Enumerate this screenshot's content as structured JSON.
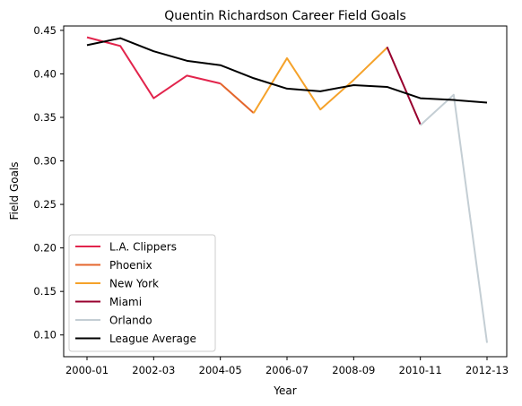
{
  "chart_data": {
    "type": "line",
    "title": "Quentin Richardson Career Field Goals",
    "xlabel": "Year",
    "ylabel": "Field Goals",
    "x_labels": [
      "2000-01",
      "2001-02",
      "2002-03",
      "2003-04",
      "2004-05",
      "2005-06",
      "2006-07",
      "2007-08",
      "2008-09",
      "2009-10",
      "2010-11",
      "2011-12",
      "2012-13"
    ],
    "x_tick_labels": [
      "2000-01",
      "2002-03",
      "2004-05",
      "2006-07",
      "2008-09",
      "2010-11",
      "2012-13"
    ],
    "ylim": [
      0.075,
      0.455
    ],
    "y_ticks": [
      0.1,
      0.15,
      0.2,
      0.25,
      0.3,
      0.35,
      0.4,
      0.45
    ],
    "y_tick_labels": [
      "0.10",
      "0.15",
      "0.20",
      "0.25",
      "0.30",
      "0.35",
      "0.40",
      "0.45"
    ],
    "grid": false,
    "legend_position": "lower-left",
    "series": [
      {
        "name": "L.A. Clippers",
        "color": "#e2244c",
        "points": [
          [
            "2000-01",
            0.442
          ],
          [
            "2001-02",
            0.432
          ],
          [
            "2002-03",
            0.372
          ],
          [
            "2003-04",
            0.398
          ],
          [
            "2004-05",
            0.389
          ]
        ]
      },
      {
        "name": "Phoenix",
        "color": "#e4662c",
        "points": [
          [
            "2004-05",
            0.389
          ],
          [
            "2005-06",
            0.355
          ]
        ]
      },
      {
        "name": "New York",
        "color": "#f5a22a",
        "points": [
          [
            "2005-06",
            0.355
          ],
          [
            "2006-07",
            0.418
          ],
          [
            "2007-08",
            0.359
          ],
          [
            "2008-09",
            0.393
          ],
          [
            "2009-10",
            0.43
          ]
        ]
      },
      {
        "name": "Miami",
        "color": "#98002e",
        "points": [
          [
            "2009-10",
            0.431
          ],
          [
            "2010-11",
            0.342
          ]
        ]
      },
      {
        "name": "Orlando",
        "color": "#c4ced4",
        "points": [
          [
            "2010-11",
            0.341
          ],
          [
            "2011-12",
            0.376
          ],
          [
            "2012-13",
            0.091
          ]
        ]
      },
      {
        "name": "League Average",
        "color": "#000000",
        "points": [
          [
            "2000-01",
            0.433
          ],
          [
            "2001-02",
            0.441
          ],
          [
            "2002-03",
            0.426
          ],
          [
            "2003-04",
            0.415
          ],
          [
            "2004-05",
            0.41
          ],
          [
            "2005-06",
            0.395
          ],
          [
            "2006-07",
            0.383
          ],
          [
            "2007-08",
            0.38
          ],
          [
            "2008-09",
            0.387
          ],
          [
            "2009-10",
            0.385
          ],
          [
            "2010-11",
            0.372
          ],
          [
            "2011-12",
            0.37
          ],
          [
            "2012-13",
            0.367
          ]
        ]
      }
    ]
  }
}
